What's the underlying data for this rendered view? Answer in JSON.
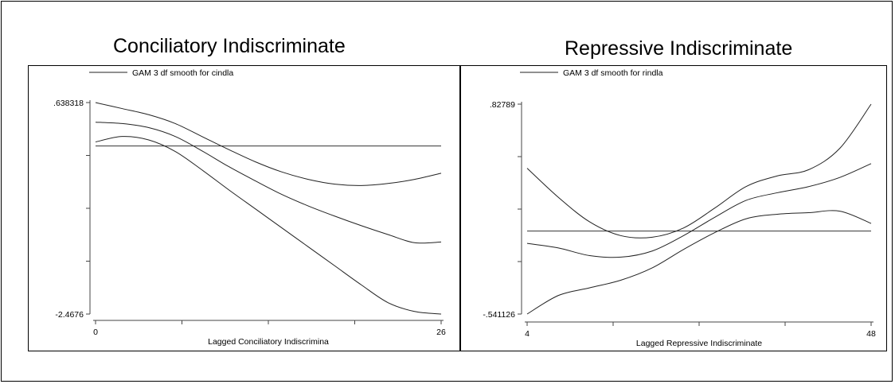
{
  "chart_data": [
    {
      "type": "line",
      "title": "Conciliatory Indiscriminate",
      "legend": "GAM 3 df smooth for cindla",
      "legend_position": "top-left",
      "xlabel": "Lagged Conciliatory Indiscrimina",
      "xlim": [
        0,
        26
      ],
      "ylim": [
        -2.4676,
        0.638318
      ],
      "x_tick_labels": [
        "0",
        "26"
      ],
      "y_tick_labels": [
        ".638318",
        "-2.4676"
      ],
      "x_ticks": [
        0,
        6.5,
        13,
        19.5,
        26
      ],
      "y_ticks": [
        -2.4676,
        -1.69112,
        -0.91464,
        -0.13816,
        0.638318
      ],
      "grid": false,
      "reference_line": 0,
      "series": [
        {
          "x": [
            0,
            2,
            4,
            6,
            8,
            10,
            12,
            14,
            16,
            18,
            20,
            22,
            24,
            26
          ],
          "values": [
            0.638,
            0.55,
            0.46,
            0.33,
            0.14,
            -0.05,
            -0.23,
            -0.38,
            -0.49,
            -0.56,
            -0.58,
            -0.55,
            -0.49,
            -0.4
          ]
        },
        {
          "x": [
            0,
            2,
            4,
            6,
            8,
            10,
            12,
            14,
            16,
            18,
            20,
            22,
            24,
            26
          ],
          "values": [
            0.35,
            0.33,
            0.27,
            0.14,
            -0.07,
            -0.3,
            -0.51,
            -0.71,
            -0.88,
            -1.03,
            -1.17,
            -1.3,
            -1.42,
            -1.41
          ]
        },
        {
          "x": [
            0,
            2,
            4,
            6,
            8,
            10,
            12,
            14,
            16,
            18,
            20,
            22,
            24,
            26
          ],
          "values": [
            0.06,
            0.14,
            0.09,
            -0.08,
            -0.35,
            -0.64,
            -0.92,
            -1.2,
            -1.48,
            -1.76,
            -2.04,
            -2.3,
            -2.43,
            -2.4676
          ]
        }
      ]
    },
    {
      "type": "line",
      "title": "Repressive Indiscriminate",
      "legend": "GAM 3 df smooth for rindla",
      "legend_position": "top-left",
      "xlabel": "Lagged Repressive Indiscriminate",
      "xlim": [
        4,
        48
      ],
      "ylim": [
        -0.541126,
        0.82789
      ],
      "x_tick_labels": [
        "4",
        "48"
      ],
      "y_tick_labels": [
        ".82789",
        "-.541126"
      ],
      "x_ticks": [
        4,
        15,
        26,
        37,
        48
      ],
      "y_ticks": [
        -0.541126,
        -0.19887,
        0.14338,
        0.48564,
        0.82789
      ],
      "grid": false,
      "reference_line": 0,
      "series": [
        {
          "x": [
            4,
            8,
            12,
            16,
            20,
            24,
            28,
            32,
            36,
            40,
            44,
            48
          ],
          "values": [
            0.41,
            0.22,
            0.06,
            -0.03,
            -0.04,
            0.02,
            0.15,
            0.29,
            0.36,
            0.4,
            0.54,
            0.82789
          ]
        },
        {
          "x": [
            4,
            8,
            12,
            16,
            20,
            24,
            28,
            32,
            36,
            40,
            44,
            48
          ],
          "values": [
            -0.08,
            -0.11,
            -0.16,
            -0.17,
            -0.13,
            -0.03,
            0.09,
            0.2,
            0.25,
            0.29,
            0.35,
            0.44
          ]
        },
        {
          "x": [
            4,
            8,
            12,
            16,
            20,
            24,
            28,
            32,
            36,
            40,
            44,
            48
          ],
          "values": [
            -0.541126,
            -0.42,
            -0.37,
            -0.32,
            -0.24,
            -0.12,
            -0.01,
            0.08,
            0.11,
            0.12,
            0.13,
            0.05
          ]
        }
      ]
    }
  ]
}
